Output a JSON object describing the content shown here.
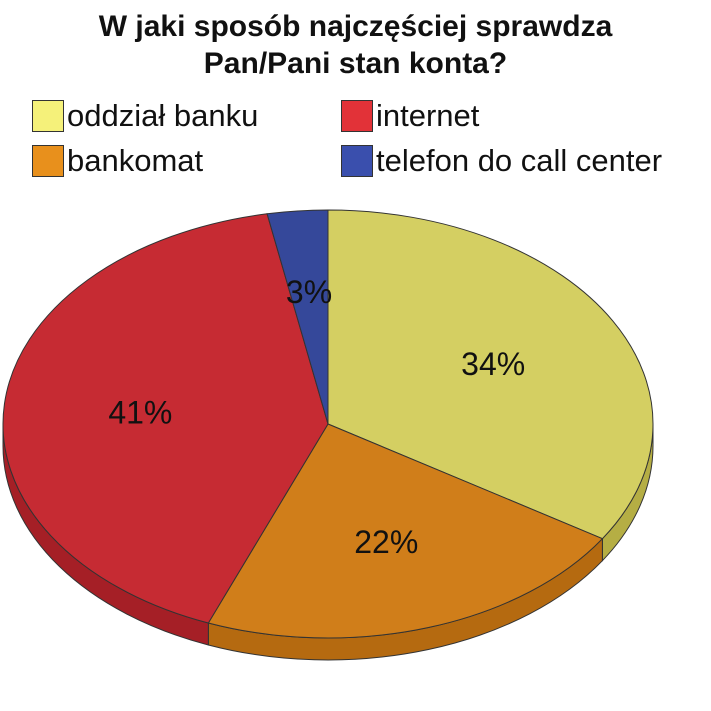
{
  "chart_data": {
    "type": "pie",
    "title_lines": [
      "W jaki sposób najczęściej sprawdza",
      "Pan/Pani stan konta?"
    ],
    "legend_position": "top",
    "slices": [
      {
        "label": "oddział banku",
        "value": 34,
        "display": "34%",
        "color": "#d4cf62",
        "side_color": "#b5ae44",
        "legend_color": "#f5f17a"
      },
      {
        "label": "bankomat",
        "value": 22,
        "display": "22%",
        "color": "#d07e1a",
        "side_color": "#b56a10",
        "legend_color": "#e8901c"
      },
      {
        "label": "internet",
        "value": 41,
        "display": "41%",
        "color": "#c62b33",
        "side_color": "#a51f26",
        "legend_color": "#e23238"
      },
      {
        "label": "telefon do call center",
        "value": 3,
        "display": "3%",
        "color": "#35489a",
        "side_color": "#27367a",
        "legend_color": "#3a4fad"
      }
    ]
  }
}
